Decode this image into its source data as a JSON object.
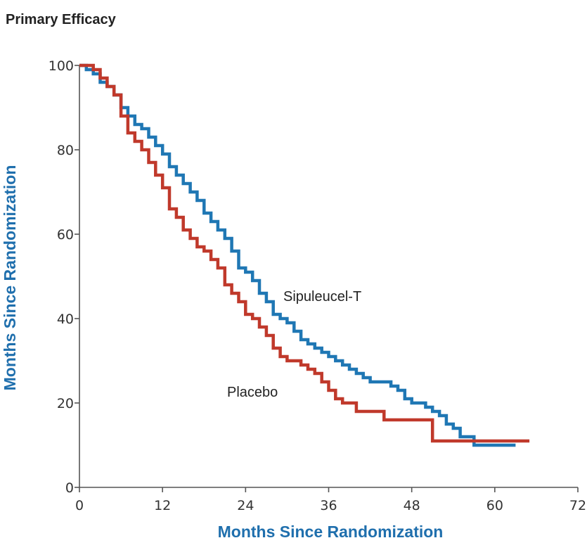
{
  "title": "Primary Efficacy",
  "colors": {
    "sipuleucel": "#1f77b4",
    "placebo": "#c0392b",
    "axis_title": "#1f6fad"
  },
  "chart_data": {
    "type": "line",
    "title": "Primary Efficacy",
    "xlabel": "Months Since Randomization",
    "ylabel": "Months Since Randomization",
    "xlim": [
      0,
      72
    ],
    "ylim": [
      0,
      100
    ],
    "x_ticks": [
      0,
      12,
      24,
      36,
      48,
      60,
      72
    ],
    "y_ticks": [
      0,
      20,
      40,
      60,
      80,
      100
    ],
    "grid": false,
    "step": true,
    "series": [
      {
        "name": "Sipuleucel-T",
        "color": "#1f77b4",
        "x": [
          0,
          1,
          2,
          3,
          4,
          5,
          6,
          7,
          8,
          9,
          10,
          11,
          12,
          13,
          14,
          15,
          16,
          17,
          18,
          19,
          20,
          21,
          22,
          23,
          24,
          25,
          26,
          27,
          28,
          29,
          30,
          31,
          32,
          33,
          34,
          35,
          36,
          37,
          38,
          39,
          40,
          41,
          42,
          43,
          44,
          45,
          46,
          47,
          48,
          49,
          50,
          51,
          52,
          53,
          54,
          55,
          56,
          57,
          58,
          60,
          62,
          63
        ],
        "y": [
          100,
          99,
          98,
          96,
          95,
          93,
          90,
          88,
          86,
          85,
          83,
          81,
          79,
          76,
          74,
          72,
          70,
          68,
          65,
          63,
          61,
          59,
          56,
          52,
          51,
          49,
          46,
          44,
          41,
          40,
          39,
          37,
          35,
          34,
          33,
          32,
          31,
          30,
          29,
          28,
          27,
          26,
          25,
          25,
          25,
          24,
          23,
          21,
          20,
          20,
          19,
          18,
          17,
          15,
          14,
          12,
          12,
          10,
          10,
          10,
          10,
          10
        ]
      },
      {
        "name": "Placebo",
        "color": "#c0392b",
        "x": [
          0,
          1,
          2,
          3,
          4,
          5,
          6,
          7,
          8,
          9,
          10,
          11,
          12,
          13,
          14,
          15,
          16,
          17,
          18,
          19,
          20,
          21,
          22,
          23,
          24,
          25,
          26,
          27,
          28,
          29,
          30,
          31,
          32,
          33,
          34,
          35,
          36,
          37,
          38,
          40,
          42,
          44,
          48,
          51,
          53,
          56,
          60,
          64,
          65
        ],
        "y": [
          100,
          100,
          99,
          97,
          95,
          93,
          88,
          84,
          82,
          80,
          77,
          74,
          71,
          66,
          64,
          61,
          59,
          57,
          56,
          54,
          52,
          48,
          46,
          44,
          41,
          40,
          38,
          36,
          33,
          31,
          30,
          30,
          29,
          28,
          27,
          25,
          23,
          21,
          20,
          18,
          18,
          16,
          16,
          11,
          11,
          11,
          11,
          11,
          11
        ]
      }
    ]
  }
}
